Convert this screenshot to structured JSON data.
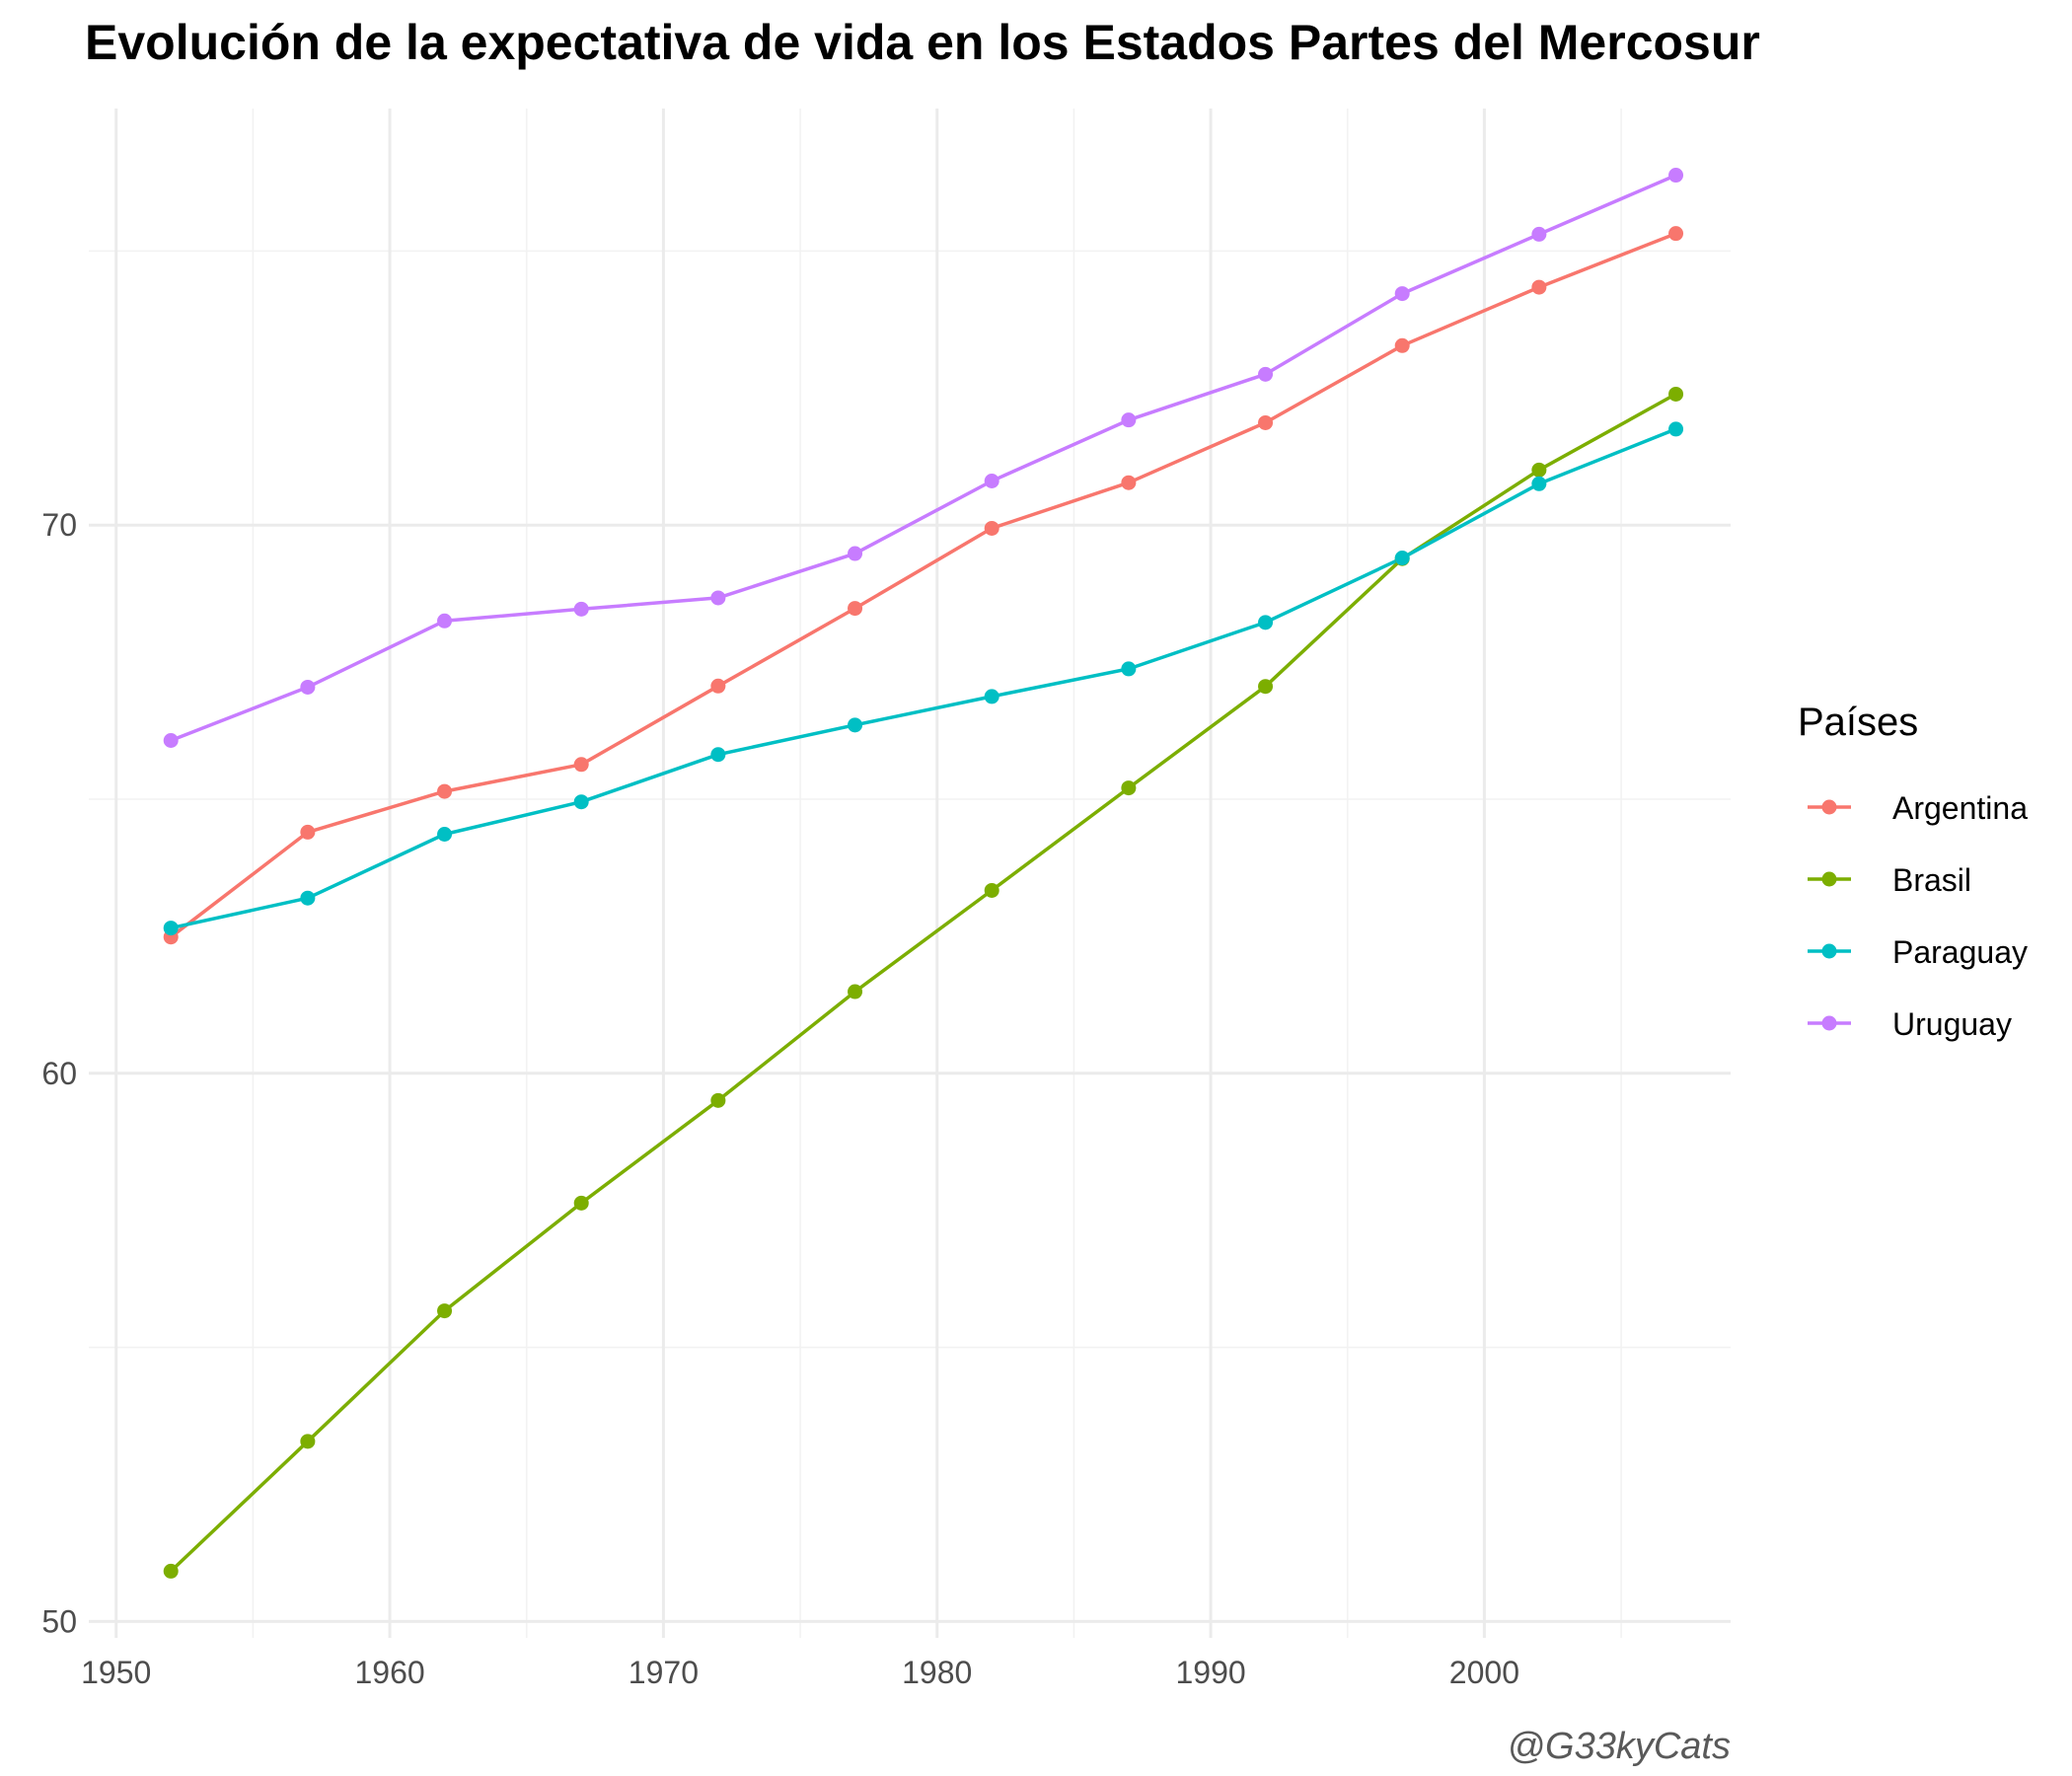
{
  "chart_data": {
    "type": "line",
    "title": "Evolución de la expectativa de vida en los Estados Partes del Mercosur",
    "xlabel": "",
    "ylabel": "",
    "x": [
      1952,
      1957,
      1962,
      1967,
      1972,
      1977,
      1982,
      1987,
      1992,
      1997,
      2002,
      2007
    ],
    "xlim": [
      1949,
      2009
    ],
    "ylim": [
      49.7,
      77.6
    ],
    "x_ticks": [
      "1950",
      "1960",
      "1970",
      "1980",
      "1990",
      "2000"
    ],
    "y_ticks": [
      "50",
      "60",
      "70"
    ],
    "grid": true,
    "legend": {
      "title": "Países",
      "position": "right"
    },
    "series": [
      {
        "name": "Argentina",
        "color": "#F8766D",
        "values": [
          62.485,
          64.399,
          65.142,
          65.634,
          67.065,
          68.481,
          69.942,
          70.774,
          71.868,
          73.275,
          74.34,
          75.32
        ]
      },
      {
        "name": "Brasil",
        "color": "#7CAE00",
        "values": [
          50.917,
          53.285,
          55.665,
          57.632,
          59.504,
          61.489,
          63.336,
          65.205,
          67.057,
          69.388,
          71.006,
          72.39
        ]
      },
      {
        "name": "Paraguay",
        "color": "#00BFC4",
        "values": [
          62.649,
          63.196,
          64.361,
          64.951,
          65.815,
          66.353,
          66.874,
          67.378,
          68.225,
          69.4,
          70.755,
          71.752
        ]
      },
      {
        "name": "Uruguay",
        "color": "#C77CFF",
        "values": [
          66.071,
          67.044,
          68.253,
          68.468,
          68.673,
          69.481,
          70.805,
          71.918,
          72.752,
          74.223,
          75.307,
          76.384
        ]
      }
    ],
    "caption": "@G33kyCats"
  }
}
